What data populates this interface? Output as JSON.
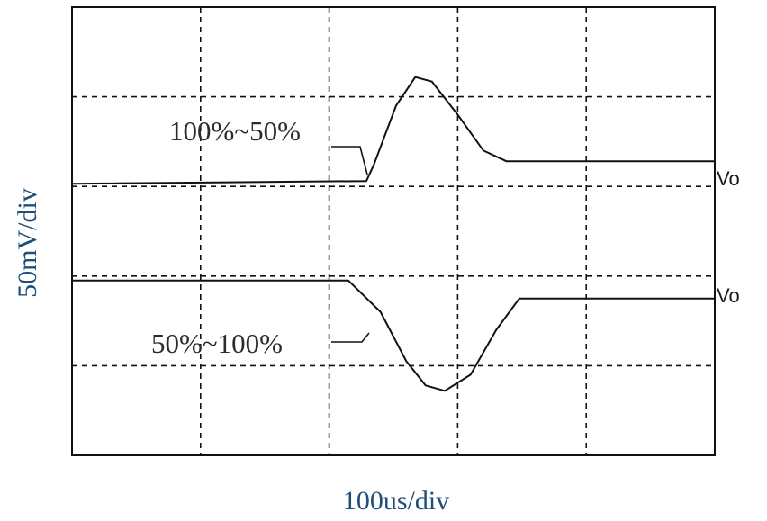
{
  "chart_data": {
    "type": "line",
    "ylabel": "50mV/div",
    "xlabel": "100us/div",
    "x_divisions": 5,
    "y_divisions": 5,
    "grid": true,
    "series": [
      {
        "name": "Vo",
        "annotation": "100%~50%",
        "x": [
          0,
          2.29,
          2.35,
          2.52,
          2.67,
          2.8,
          3.0,
          3.2,
          3.38,
          4.0,
          5.0
        ],
        "y": [
          3.03,
          3.06,
          3.25,
          3.9,
          4.22,
          4.17,
          3.8,
          3.4,
          3.28,
          3.28,
          3.28
        ]
      },
      {
        "name": "Vo",
        "annotation": "50%~100%",
        "x": [
          0,
          2.15,
          2.4,
          2.6,
          2.75,
          2.9,
          3.1,
          3.3,
          3.48,
          4.0,
          5.0
        ],
        "y": [
          1.95,
          1.95,
          1.6,
          1.05,
          0.78,
          0.72,
          0.9,
          1.4,
          1.75,
          1.75,
          1.75
        ]
      }
    ]
  }
}
